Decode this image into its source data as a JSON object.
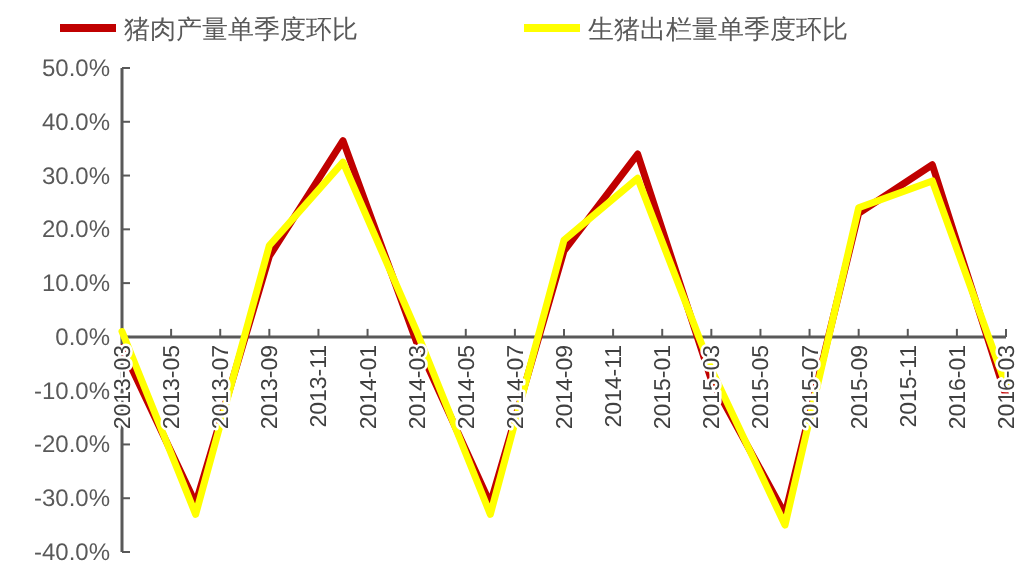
{
  "chart_data": {
    "type": "line",
    "x": [
      "2013-03",
      "2013-06",
      "2013-09",
      "2013-12",
      "2014-03",
      "2014-06",
      "2014-09",
      "2014-12",
      "2015-03",
      "2015-06",
      "2015-09",
      "2015-12",
      "2016-03"
    ],
    "series": [
      {
        "name": "猪肉产量单季度环比",
        "color": "#c00000",
        "values": [
          -2,
          -31,
          15,
          36.5,
          -1,
          -31,
          16,
          34,
          -8,
          -33,
          23,
          32,
          -11
        ]
      },
      {
        "name": "生猪出栏量单季度环比",
        "color": "#ffff00",
        "values": [
          1,
          -33,
          17,
          32.5,
          1,
          -33,
          18,
          29.5,
          -6,
          -35,
          24,
          29,
          -9
        ]
      }
    ],
    "xlim": [
      "2013-03",
      "2016-03"
    ],
    "xticks": [
      "2013-03",
      "2013-05",
      "2013-07",
      "2013-09",
      "2013-11",
      "2014-01",
      "2014-03",
      "2014-05",
      "2014-07",
      "2014-09",
      "2014-11",
      "2015-01",
      "2015-03",
      "2015-05",
      "2015-07",
      "2015-09",
      "2015-11",
      "2016-01",
      "2016-03"
    ],
    "ylim": [
      -40,
      50
    ],
    "yticks": [
      {
        "value": -40,
        "label": "-40.0%"
      },
      {
        "value": -30,
        "label": "-30.0%"
      },
      {
        "value": -20,
        "label": "-20.0%"
      },
      {
        "value": -10,
        "label": "-10.0%"
      },
      {
        "value": 0,
        "label": "0.0%"
      },
      {
        "value": 10,
        "label": "10.0%"
      },
      {
        "value": 20,
        "label": "20.0%"
      },
      {
        "value": 30,
        "label": "30.0%"
      },
      {
        "value": 40,
        "label": "40.0%"
      },
      {
        "value": 50,
        "label": "50.0%"
      }
    ],
    "legend": "top",
    "grid": false
  }
}
